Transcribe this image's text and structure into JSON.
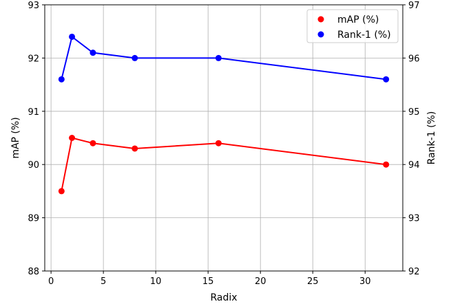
{
  "chart_data": {
    "type": "line",
    "x": [
      1,
      2,
      4,
      8,
      16,
      32
    ],
    "xlabel": "Radix",
    "xlim": [
      -0.6,
      33.6
    ],
    "xticks": [
      0,
      5,
      10,
      15,
      20,
      25,
      30
    ],
    "ylabel_left": "mAP (%)",
    "ylim_left": [
      88,
      93
    ],
    "yticks_left": [
      88,
      89,
      90,
      91,
      92,
      93
    ],
    "ylabel_right": "Rank-1 (%)",
    "ylim_right": [
      92,
      97
    ],
    "yticks_right": [
      92,
      93,
      94,
      95,
      96,
      97
    ],
    "grid": true,
    "legend_position": "top-right",
    "series": [
      {
        "name": "mAP (%)",
        "axis": "left",
        "color": "#ff0000",
        "values": [
          89.5,
          90.5,
          90.4,
          90.3,
          90.4,
          90.0
        ]
      },
      {
        "name": "Rank-1 (%)",
        "axis": "right",
        "color": "#0000ff",
        "values": [
          95.6,
          96.4,
          96.1,
          96.0,
          96.0,
          95.6
        ]
      }
    ]
  }
}
